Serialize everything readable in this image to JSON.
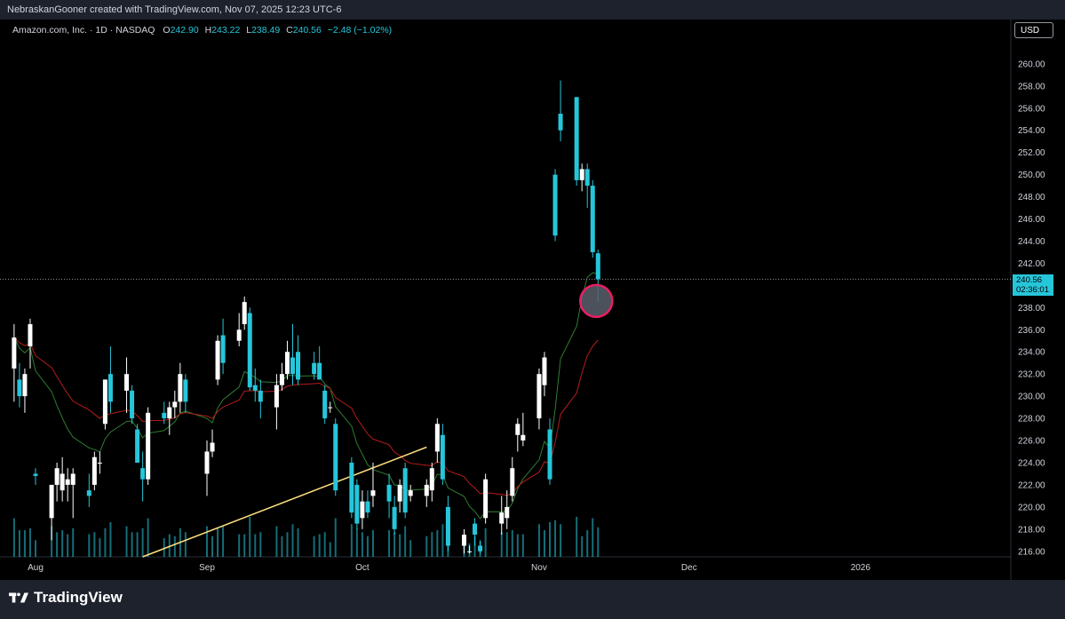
{
  "header": {
    "credit": "NebraskanGooner created with TradingView.com, Nov 07, 2025 12:23 UTC-6"
  },
  "legend": {
    "symbol": "Amazon.com, Inc. · 1D · NASDAQ",
    "open_label": "O",
    "open": "242.90",
    "high_label": "H",
    "high": "243.22",
    "low_label": "L",
    "low": "238.49",
    "close_label": "C",
    "close": "240.56",
    "change": "−2.48 (−1.02%)"
  },
  "currency": "USD",
  "price_tag": {
    "price": "240.56",
    "countdown": "02:36:01"
  },
  "brand": "TradingView",
  "icons": {
    "logo": "tradingview-logo-icon"
  },
  "colors": {
    "up": "#ffffff",
    "down": "#26c6da",
    "ema_fast": "#2e7d32",
    "ema_slow": "#b71c1c",
    "trendline": "#ffe082",
    "marker": "#e91e63",
    "volume": "#26c6da"
  },
  "chart_data": {
    "type": "candlestick",
    "y_ticks": [
      "216.00",
      "218.00",
      "220.00",
      "222.00",
      "224.00",
      "226.00",
      "228.00",
      "230.00",
      "232.00",
      "234.00",
      "236.00",
      "238.00",
      "240.00",
      "242.00",
      "244.00",
      "246.00",
      "248.00",
      "250.00",
      "252.00",
      "254.00",
      "256.00",
      "258.00",
      "260.00"
    ],
    "ylim": [
      215.5,
      264
    ],
    "x_labels": [
      {
        "label": "Aug",
        "date": "2025-08-01"
      },
      {
        "label": "Sep",
        "date": "2025-09-02"
      },
      {
        "label": "Oct",
        "date": "2025-10-01"
      },
      {
        "label": "Nov",
        "date": "2025-11-03"
      },
      {
        "label": "Dec",
        "date": "2025-12-01"
      },
      {
        "label": "2026",
        "date": "2026-01-02"
      }
    ],
    "candles": [
      {
        "date": "2025-07-28",
        "o": 232.5,
        "h": 236.5,
        "l": 229.5,
        "c": 235.3
      },
      {
        "date": "2025-07-29",
        "o": 231.5,
        "h": 233.0,
        "l": 229.0,
        "c": 230.0
      },
      {
        "date": "2025-07-30",
        "o": 230.0,
        "h": 232.5,
        "l": 228.5,
        "c": 232.0
      },
      {
        "date": "2025-07-31",
        "o": 234.5,
        "h": 237.0,
        "l": 232.5,
        "c": 236.5
      },
      {
        "date": "2025-08-01",
        "o": 223.0,
        "h": 223.5,
        "l": 222.0,
        "c": 222.8
      },
      {
        "date": "2025-08-04",
        "o": 219.0,
        "h": 222.0,
        "l": 217.0,
        "c": 222.0
      },
      {
        "date": "2025-08-05",
        "o": 222.0,
        "h": 224.0,
        "l": 220.5,
        "c": 223.5
      },
      {
        "date": "2025-08-06",
        "o": 221.5,
        "h": 224.5,
        "l": 220.5,
        "c": 223.0
      },
      {
        "date": "2025-08-07",
        "o": 222.0,
        "h": 223.5,
        "l": 220.5,
        "c": 222.5
      },
      {
        "date": "2025-08-08",
        "o": 222.0,
        "h": 223.5,
        "l": 219.0,
        "c": 223.0
      },
      {
        "date": "2025-08-11",
        "o": 221.5,
        "h": 223.0,
        "l": 220.0,
        "c": 221.0
      },
      {
        "date": "2025-08-12",
        "o": 222.0,
        "h": 225.0,
        "l": 221.5,
        "c": 224.5
      },
      {
        "date": "2025-08-13",
        "o": 224.0,
        "h": 225.0,
        "l": 223.0,
        "c": 224.0
      },
      {
        "date": "2025-08-14",
        "o": 227.5,
        "h": 231.5,
        "l": 227.0,
        "c": 231.5
      },
      {
        "date": "2025-08-15",
        "o": 232.0,
        "h": 234.5,
        "l": 228.5,
        "c": 229.5
      },
      {
        "date": "2025-08-18",
        "o": 230.5,
        "h": 233.5,
        "l": 228.5,
        "c": 232.0
      },
      {
        "date": "2025-08-19",
        "o": 230.5,
        "h": 231.0,
        "l": 227.5,
        "c": 228.0
      },
      {
        "date": "2025-08-20",
        "o": 227.0,
        "h": 227.5,
        "l": 224.0,
        "c": 224.0
      },
      {
        "date": "2025-08-21",
        "o": 223.5,
        "h": 225.0,
        "l": 220.5,
        "c": 222.5
      },
      {
        "date": "2025-08-22",
        "o": 222.5,
        "h": 229.0,
        "l": 222.0,
        "c": 228.5
      },
      {
        "date": "2025-08-25",
        "o": 228.5,
        "h": 229.5,
        "l": 227.5,
        "c": 228.0
      },
      {
        "date": "2025-08-26",
        "o": 228.0,
        "h": 229.5,
        "l": 226.5,
        "c": 229.0
      },
      {
        "date": "2025-08-27",
        "o": 229.0,
        "h": 230.5,
        "l": 228.0,
        "c": 229.5
      },
      {
        "date": "2025-08-28",
        "o": 229.5,
        "h": 233.0,
        "l": 228.5,
        "c": 232.0
      },
      {
        "date": "2025-08-29",
        "o": 231.5,
        "h": 232.0,
        "l": 228.5,
        "c": 229.5
      },
      {
        "date": "2025-09-02",
        "o": 223.0,
        "h": 226.0,
        "l": 221.0,
        "c": 225.0
      },
      {
        "date": "2025-09-03",
        "o": 225.0,
        "h": 227.0,
        "l": 224.5,
        "c": 225.8
      },
      {
        "date": "2025-09-04",
        "o": 231.5,
        "h": 235.5,
        "l": 231.0,
        "c": 235.0
      },
      {
        "date": "2025-09-05",
        "o": 235.5,
        "h": 237.0,
        "l": 232.0,
        "c": 233.0
      },
      {
        "date": "2025-09-08",
        "o": 235.0,
        "h": 237.5,
        "l": 234.5,
        "c": 236.0
      },
      {
        "date": "2025-09-09",
        "o": 236.5,
        "h": 239.0,
        "l": 236.0,
        "c": 238.5
      },
      {
        "date": "2025-09-10",
        "o": 237.5,
        "h": 238.0,
        "l": 230.5,
        "c": 230.8
      },
      {
        "date": "2025-09-11",
        "o": 231.0,
        "h": 232.5,
        "l": 229.5,
        "c": 230.5
      },
      {
        "date": "2025-09-12",
        "o": 230.5,
        "h": 231.5,
        "l": 228.0,
        "c": 229.5
      },
      {
        "date": "2025-09-15",
        "o": 229.0,
        "h": 232.0,
        "l": 227.0,
        "c": 231.0
      },
      {
        "date": "2025-09-16",
        "o": 231.0,
        "h": 233.0,
        "l": 230.5,
        "c": 232.0
      },
      {
        "date": "2025-09-17",
        "o": 232.0,
        "h": 235.0,
        "l": 231.5,
        "c": 234.0
      },
      {
        "date": "2025-09-18",
        "o": 233.5,
        "h": 236.5,
        "l": 231.0,
        "c": 232.0
      },
      {
        "date": "2025-09-19",
        "o": 234.0,
        "h": 235.5,
        "l": 231.0,
        "c": 231.5
      },
      {
        "date": "2025-09-22",
        "o": 233.0,
        "h": 234.0,
        "l": 231.5,
        "c": 232.0
      },
      {
        "date": "2025-09-23",
        "o": 233.0,
        "h": 234.5,
        "l": 231.5,
        "c": 231.5
      },
      {
        "date": "2025-09-24",
        "o": 230.5,
        "h": 231.0,
        "l": 227.5,
        "c": 228.0
      },
      {
        "date": "2025-09-25",
        "o": 229.0,
        "h": 229.5,
        "l": 228.5,
        "c": 229.0
      },
      {
        "date": "2025-09-26",
        "o": 227.5,
        "h": 228.0,
        "l": 221.0,
        "c": 221.5
      },
      {
        "date": "2025-09-29",
        "o": 224.0,
        "h": 224.5,
        "l": 219.0,
        "c": 219.5
      },
      {
        "date": "2025-09-30",
        "o": 222.0,
        "h": 222.5,
        "l": 218.0,
        "c": 218.5
      },
      {
        "date": "2025-10-01",
        "o": 219.0,
        "h": 221.5,
        "l": 218.0,
        "c": 220.5
      },
      {
        "date": "2025-10-02",
        "o": 220.5,
        "h": 221.5,
        "l": 219.0,
        "c": 219.5
      },
      {
        "date": "2025-10-03",
        "o": 221.0,
        "h": 224.0,
        "l": 220.0,
        "c": 221.5
      },
      {
        "date": "2025-10-06",
        "o": 222.0,
        "h": 223.0,
        "l": 219.0,
        "c": 220.5
      },
      {
        "date": "2025-10-07",
        "o": 220.0,
        "h": 221.0,
        "l": 217.5,
        "c": 218.0
      },
      {
        "date": "2025-10-08",
        "o": 220.5,
        "h": 222.5,
        "l": 219.5,
        "c": 222.0
      },
      {
        "date": "2025-10-09",
        "o": 223.5,
        "h": 224.0,
        "l": 219.0,
        "c": 219.5
      },
      {
        "date": "2025-10-10",
        "o": 221.0,
        "h": 222.0,
        "l": 220.5,
        "c": 221.5
      },
      {
        "date": "2025-10-13",
        "o": 221.0,
        "h": 222.5,
        "l": 220.0,
        "c": 222.0
      },
      {
        "date": "2025-10-14",
        "o": 221.5,
        "h": 224.0,
        "l": 220.5,
        "c": 223.5
      },
      {
        "date": "2025-10-15",
        "o": 225.0,
        "h": 228.0,
        "l": 224.0,
        "c": 227.5
      },
      {
        "date": "2025-10-16",
        "o": 226.5,
        "h": 227.5,
        "l": 222.0,
        "c": 222.5
      },
      {
        "date": "2025-10-17",
        "o": 220.0,
        "h": 221.0,
        "l": 216.0,
        "c": 216.5
      },
      {
        "date": "2025-10-20",
        "o": 216.5,
        "h": 218.0,
        "l": 215.8,
        "c": 217.5
      },
      {
        "date": "2025-10-21",
        "o": 216.0,
        "h": 216.5,
        "l": 215.8,
        "c": 216.0
      },
      {
        "date": "2025-10-22",
        "o": 218.5,
        "h": 219.0,
        "l": 216.5,
        "c": 217.5
      },
      {
        "date": "2025-10-23",
        "o": 216.5,
        "h": 217.0,
        "l": 215.8,
        "c": 216.0
      },
      {
        "date": "2025-10-24",
        "o": 219.0,
        "h": 223.0,
        "l": 218.5,
        "c": 222.5
      },
      {
        "date": "2025-10-27",
        "o": 218.5,
        "h": 221.0,
        "l": 217.5,
        "c": 219.5
      },
      {
        "date": "2025-10-28",
        "o": 219.0,
        "h": 221.5,
        "l": 218.0,
        "c": 220.0
      },
      {
        "date": "2025-10-29",
        "o": 221.0,
        "h": 224.5,
        "l": 220.5,
        "c": 223.5
      },
      {
        "date": "2025-10-30",
        "o": 226.5,
        "h": 228.0,
        "l": 225.0,
        "c": 227.5
      },
      {
        "date": "2025-10-31",
        "o": 226.0,
        "h": 228.5,
        "l": 225.5,
        "c": 226.5
      },
      {
        "date": "2025-11-03",
        "o": 228.0,
        "h": 232.5,
        "l": 227.0,
        "c": 232.0
      },
      {
        "date": "2025-11-04",
        "o": 231.0,
        "h": 234.0,
        "l": 230.0,
        "c": 233.5
      },
      {
        "date": "2025-11-05",
        "o": 227.0,
        "h": 228.0,
        "l": 222.0,
        "c": 222.5
      },
      {
        "date": "2025-11-06",
        "o": 250.0,
        "h": 250.5,
        "l": 244.0,
        "c": 244.5
      },
      {
        "date": "2025-11-07",
        "o": 255.5,
        "h": 258.5,
        "l": 253.0,
        "c": 254.0
      },
      {
        "date": "2025-11-10",
        "o": 257.0,
        "h": 257.0,
        "l": 249.0,
        "c": 249.5
      },
      {
        "date": "2025-11-11",
        "o": 249.5,
        "h": 251.0,
        "l": 248.5,
        "c": 250.5
      },
      {
        "date": "2025-11-12",
        "o": 250.5,
        "h": 251.0,
        "l": 247.0,
        "c": 249.0
      },
      {
        "date": "2025-11-13",
        "o": 249.0,
        "h": 249.5,
        "l": 242.5,
        "c": 243.0
      },
      {
        "date": "2025-11-14",
        "o": 242.9,
        "h": 243.22,
        "l": 238.49,
        "c": 240.56
      }
    ]
  }
}
